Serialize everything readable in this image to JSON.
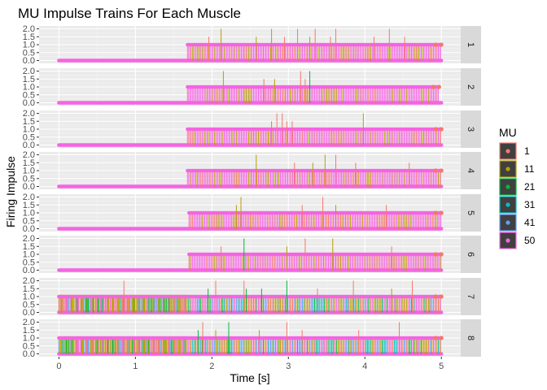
{
  "chart_data": {
    "type": "line",
    "title": "MU Impulse Trains For Each Muscle",
    "xlabel": "Time [s]",
    "ylabel": "Firing Impulse",
    "xlim": [
      0,
      5
    ],
    "ylim": [
      0,
      2
    ],
    "x_ticks": [
      "0",
      "1",
      "2",
      "3",
      "4",
      "5"
    ],
    "y_ticks": [
      "0.0",
      "0.5",
      "1.0",
      "1.5",
      "2.0"
    ],
    "grid": true,
    "legend": {
      "title": "MU",
      "position": "right",
      "entries": [
        {
          "label": "1",
          "color": "#F8766D"
        },
        {
          "label": "11",
          "color": "#B79F00"
        },
        {
          "label": "21",
          "color": "#00BA38"
        },
        {
          "label": "31",
          "color": "#00BFC4"
        },
        {
          "label": "41",
          "color": "#619CFF"
        },
        {
          "label": "50",
          "color": "#F564E3"
        }
      ]
    },
    "panels": [
      {
        "strip": "1",
        "start": 1.68,
        "end": 5.0,
        "tall": [
          {
            "x": 2.12,
            "y": 2.0,
            "mu": "11"
          },
          {
            "x": 2.78,
            "y": 2.0,
            "mu": "11"
          },
          {
            "x": 3.12,
            "y": 2.0,
            "mu": "1"
          },
          {
            "x": 3.35,
            "y": 2.0,
            "mu": "1"
          },
          {
            "x": 3.62,
            "y": 2.0,
            "mu": "1"
          },
          {
            "x": 4.32,
            "y": 2.0,
            "mu": "1"
          },
          {
            "x": 1.96,
            "y": 1.5,
            "mu": "1"
          },
          {
            "x": 2.58,
            "y": 1.5,
            "mu": "11"
          },
          {
            "x": 2.95,
            "y": 1.5,
            "mu": "1"
          },
          {
            "x": 3.28,
            "y": 1.5,
            "mu": "11"
          },
          {
            "x": 3.55,
            "y": 1.5,
            "mu": "1"
          },
          {
            "x": 4.12,
            "y": 1.5,
            "mu": "1"
          },
          {
            "x": 4.52,
            "y": 1.5,
            "mu": "1"
          }
        ]
      },
      {
        "strip": "2",
        "start": 1.68,
        "end": 4.97,
        "tall": [
          {
            "x": 2.15,
            "y": 2.0,
            "mu": "11"
          },
          {
            "x": 3.16,
            "y": 2.0,
            "mu": "1"
          },
          {
            "x": 3.28,
            "y": 2.0,
            "mu": "21"
          },
          {
            "x": 2.68,
            "y": 1.5,
            "mu": "1"
          },
          {
            "x": 2.82,
            "y": 1.5,
            "mu": "11"
          },
          {
            "x": 3.22,
            "y": 1.5,
            "mu": "1"
          }
        ]
      },
      {
        "strip": "3",
        "start": 1.68,
        "end": 5.0,
        "tall": [
          {
            "x": 2.85,
            "y": 2.0,
            "mu": "1"
          },
          {
            "x": 2.92,
            "y": 2.0,
            "mu": "1"
          },
          {
            "x": 3.98,
            "y": 2.0,
            "mu": "11"
          },
          {
            "x": 2.78,
            "y": 1.5,
            "mu": "11"
          },
          {
            "x": 2.98,
            "y": 1.5,
            "mu": "1"
          },
          {
            "x": 3.05,
            "y": 1.5,
            "mu": "1"
          }
        ]
      },
      {
        "strip": "4",
        "start": 1.68,
        "end": 5.0,
        "tall": [
          {
            "x": 2.58,
            "y": 2.0,
            "mu": "11"
          },
          {
            "x": 3.48,
            "y": 2.0,
            "mu": "11"
          },
          {
            "x": 3.62,
            "y": 2.0,
            "mu": "1"
          },
          {
            "x": 3.08,
            "y": 1.5,
            "mu": "1"
          },
          {
            "x": 3.32,
            "y": 1.5,
            "mu": "11"
          },
          {
            "x": 3.88,
            "y": 1.5,
            "mu": "1"
          },
          {
            "x": 4.58,
            "y": 1.5,
            "mu": "1"
          }
        ]
      },
      {
        "strip": "5",
        "start": 1.7,
        "end": 5.0,
        "tall": [
          {
            "x": 2.38,
            "y": 2.0,
            "mu": "11"
          },
          {
            "x": 3.45,
            "y": 2.0,
            "mu": "1"
          },
          {
            "x": 2.32,
            "y": 1.5,
            "mu": "11"
          },
          {
            "x": 3.18,
            "y": 1.5,
            "mu": "1"
          },
          {
            "x": 3.62,
            "y": 1.5,
            "mu": "11"
          },
          {
            "x": 4.28,
            "y": 1.5,
            "mu": "1"
          }
        ]
      },
      {
        "strip": "6",
        "start": 1.7,
        "end": 5.0,
        "tall": [
          {
            "x": 2.42,
            "y": 2.0,
            "mu": "21"
          },
          {
            "x": 3.22,
            "y": 2.0,
            "mu": "1"
          },
          {
            "x": 3.58,
            "y": 2.0,
            "mu": "11"
          },
          {
            "x": 2.12,
            "y": 1.5,
            "mu": "1"
          },
          {
            "x": 2.98,
            "y": 1.5,
            "mu": "11"
          },
          {
            "x": 4.35,
            "y": 1.5,
            "mu": "1"
          }
        ]
      },
      {
        "strip": "7",
        "start": 0.0,
        "end": 5.0,
        "tall": [
          {
            "x": 0.85,
            "y": 2.0,
            "mu": "1"
          },
          {
            "x": 2.05,
            "y": 2.0,
            "mu": "1"
          },
          {
            "x": 2.42,
            "y": 2.0,
            "mu": "1"
          },
          {
            "x": 2.98,
            "y": 2.0,
            "mu": "21"
          },
          {
            "x": 3.85,
            "y": 2.0,
            "mu": "1"
          },
          {
            "x": 4.62,
            "y": 2.0,
            "mu": "1"
          },
          {
            "x": 1.95,
            "y": 1.5,
            "mu": "21"
          },
          {
            "x": 2.45,
            "y": 1.5,
            "mu": "21"
          },
          {
            "x": 2.65,
            "y": 1.5,
            "mu": "21"
          },
          {
            "x": 3.38,
            "y": 1.5,
            "mu": "1"
          },
          {
            "x": 4.35,
            "y": 1.5,
            "mu": "11"
          }
        ]
      },
      {
        "strip": "8",
        "start": 0.0,
        "end": 5.0,
        "tall": [
          {
            "x": 1.88,
            "y": 2.0,
            "mu": "1"
          },
          {
            "x": 2.22,
            "y": 2.0,
            "mu": "21"
          },
          {
            "x": 2.98,
            "y": 2.0,
            "mu": "1"
          },
          {
            "x": 4.45,
            "y": 2.0,
            "mu": "1"
          },
          {
            "x": 1.82,
            "y": 1.5,
            "mu": "21"
          },
          {
            "x": 2.05,
            "y": 1.5,
            "mu": "11"
          },
          {
            "x": 2.62,
            "y": 1.5,
            "mu": "11"
          },
          {
            "x": 3.18,
            "y": 1.5,
            "mu": "1"
          },
          {
            "x": 3.92,
            "y": 1.5,
            "mu": "1"
          }
        ]
      }
    ]
  }
}
